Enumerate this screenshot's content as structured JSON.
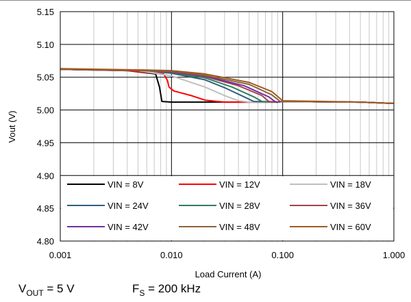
{
  "chart_data": {
    "type": "line",
    "x_scale": "log",
    "xlim": [
      0.001,
      1.0
    ],
    "ylim": [
      4.8,
      5.15
    ],
    "xlabel": "Load Current (A)",
    "ylabel": "Vout (V)",
    "x_ticks": [
      "0.001",
      "0.010",
      "0.100",
      "1.000"
    ],
    "y_ticks": [
      "4.80",
      "4.85",
      "4.90",
      "4.95",
      "5.00",
      "5.05",
      "5.10",
      "5.15"
    ],
    "grid": true,
    "legend_placement": "bottom inside plot, 3 columns",
    "series": [
      {
        "name": "VIN = 8V",
        "color": "#000000",
        "points": [
          [
            0.001,
            5.062
          ],
          [
            0.004,
            5.06
          ],
          [
            0.0072,
            5.055
          ],
          [
            0.0078,
            5.035
          ],
          [
            0.0082,
            5.013
          ],
          [
            0.01,
            5.012
          ],
          [
            0.03,
            5.012
          ],
          [
            0.09,
            5.012
          ],
          [
            0.1,
            5.013
          ],
          [
            0.5,
            5.012
          ],
          [
            1.0,
            5.01
          ]
        ]
      },
      {
        "name": "VIN = 12V",
        "color": "#ff0000",
        "points": [
          [
            0.001,
            5.062
          ],
          [
            0.004,
            5.06
          ],
          [
            0.0085,
            5.055
          ],
          [
            0.0092,
            5.045
          ],
          [
            0.0095,
            5.035
          ],
          [
            0.0105,
            5.029
          ],
          [
            0.015,
            5.022
          ],
          [
            0.02,
            5.015
          ],
          [
            0.03,
            5.012
          ],
          [
            0.09,
            5.012
          ],
          [
            0.1,
            5.013
          ],
          [
            0.5,
            5.012
          ],
          [
            1.0,
            5.01
          ]
        ]
      },
      {
        "name": "VIN = 18V",
        "color": "#bfbfbf",
        "points": [
          [
            0.001,
            5.062
          ],
          [
            0.005,
            5.06
          ],
          [
            0.01,
            5.052
          ],
          [
            0.02,
            5.035
          ],
          [
            0.03,
            5.022
          ],
          [
            0.04,
            5.014
          ],
          [
            0.05,
            5.012
          ],
          [
            0.09,
            5.012
          ],
          [
            0.1,
            5.013
          ],
          [
            0.5,
            5.012
          ],
          [
            1.0,
            5.01
          ]
        ]
      },
      {
        "name": "VIN = 24V",
        "color": "#2e5f80",
        "points": [
          [
            0.001,
            5.062
          ],
          [
            0.006,
            5.06
          ],
          [
            0.01,
            5.056
          ],
          [
            0.02,
            5.046
          ],
          [
            0.03,
            5.034
          ],
          [
            0.045,
            5.02
          ],
          [
            0.055,
            5.013
          ],
          [
            0.09,
            5.012
          ],
          [
            0.1,
            5.013
          ],
          [
            0.5,
            5.012
          ],
          [
            1.0,
            5.01
          ]
        ]
      },
      {
        "name": "VIN = 28V",
        "color": "#2f7d5c",
        "points": [
          [
            0.001,
            5.062
          ],
          [
            0.006,
            5.06
          ],
          [
            0.01,
            5.057
          ],
          [
            0.02,
            5.049
          ],
          [
            0.035,
            5.035
          ],
          [
            0.055,
            5.02
          ],
          [
            0.065,
            5.013
          ],
          [
            0.09,
            5.012
          ],
          [
            0.1,
            5.013
          ],
          [
            0.5,
            5.012
          ],
          [
            1.0,
            5.01
          ]
        ]
      },
      {
        "name": "VIN = 36V",
        "color": "#a5404a",
        "points": [
          [
            0.001,
            5.062
          ],
          [
            0.006,
            5.06
          ],
          [
            0.01,
            5.058
          ],
          [
            0.02,
            5.051
          ],
          [
            0.04,
            5.037
          ],
          [
            0.065,
            5.022
          ],
          [
            0.075,
            5.013
          ],
          [
            0.09,
            5.012
          ],
          [
            0.1,
            5.013
          ],
          [
            0.5,
            5.012
          ],
          [
            1.0,
            5.01
          ]
        ]
      },
      {
        "name": "VIN = 42V",
        "color": "#7030a0",
        "points": [
          [
            0.001,
            5.062
          ],
          [
            0.006,
            5.06
          ],
          [
            0.01,
            5.058
          ],
          [
            0.02,
            5.052
          ],
          [
            0.045,
            5.037
          ],
          [
            0.075,
            5.02
          ],
          [
            0.085,
            5.013
          ],
          [
            0.09,
            5.012
          ],
          [
            0.1,
            5.013
          ],
          [
            0.5,
            5.012
          ],
          [
            1.0,
            5.01
          ]
        ]
      },
      {
        "name": "VIN = 48V",
        "color": "#8c6239",
        "points": [
          [
            0.001,
            5.062
          ],
          [
            0.006,
            5.06
          ],
          [
            0.01,
            5.059
          ],
          [
            0.02,
            5.053
          ],
          [
            0.05,
            5.039
          ],
          [
            0.08,
            5.023
          ],
          [
            0.095,
            5.013
          ],
          [
            0.1,
            5.013
          ],
          [
            0.5,
            5.012
          ],
          [
            1.0,
            5.01
          ]
        ]
      },
      {
        "name": "VIN = 60V",
        "color": "#9e5a20",
        "points": [
          [
            0.001,
            5.063
          ],
          [
            0.006,
            5.061
          ],
          [
            0.01,
            5.06
          ],
          [
            0.02,
            5.055
          ],
          [
            0.05,
            5.042
          ],
          [
            0.08,
            5.028
          ],
          [
            0.1,
            5.014
          ],
          [
            0.5,
            5.012
          ],
          [
            1.0,
            5.01
          ]
        ]
      }
    ]
  },
  "caption": {
    "vout_main": "V",
    "vout_sub": "OUT",
    "vout_value": " = 5 V",
    "fs_main": "F",
    "fs_sub": "S",
    "fs_value": " = 200 kHz"
  }
}
